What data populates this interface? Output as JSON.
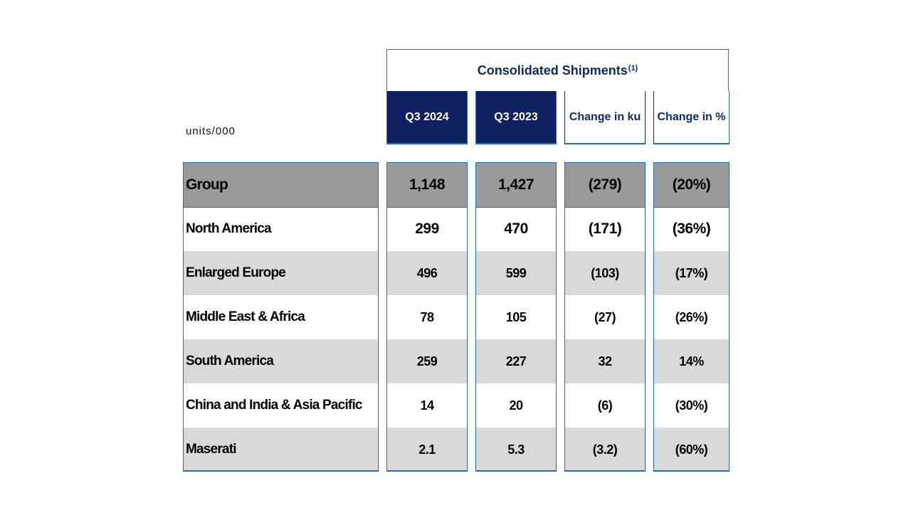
{
  "table": {
    "header": "Consolidated Shipments",
    "header_footnote": "(1)",
    "units_label": "units/000",
    "columns": [
      "Q3 2024",
      "Q3 2023",
      "Change in ku",
      "Change in %"
    ],
    "rows": [
      {
        "label": "Group",
        "values": [
          "1,148",
          "1,427",
          "(279)",
          "(20%)"
        ]
      },
      {
        "label": "North America",
        "values": [
          "299",
          "470",
          "(171)",
          "(36%)"
        ]
      },
      {
        "label": "Enlarged Europe",
        "values": [
          "496",
          "599",
          "(103)",
          "(17%)"
        ]
      },
      {
        "label": "Middle East & Africa",
        "values": [
          "78",
          "105",
          "(27)",
          "(26%)"
        ]
      },
      {
        "label": "South America",
        "values": [
          "259",
          "227",
          "32",
          "14%"
        ]
      },
      {
        "label": "China and India & Asia Pacific",
        "values": [
          "14",
          "20",
          "(6)",
          "(30%)"
        ]
      },
      {
        "label": "Maserati",
        "values": [
          "2.1",
          "5.3",
          "(3.2)",
          "(60%)"
        ]
      }
    ]
  }
}
